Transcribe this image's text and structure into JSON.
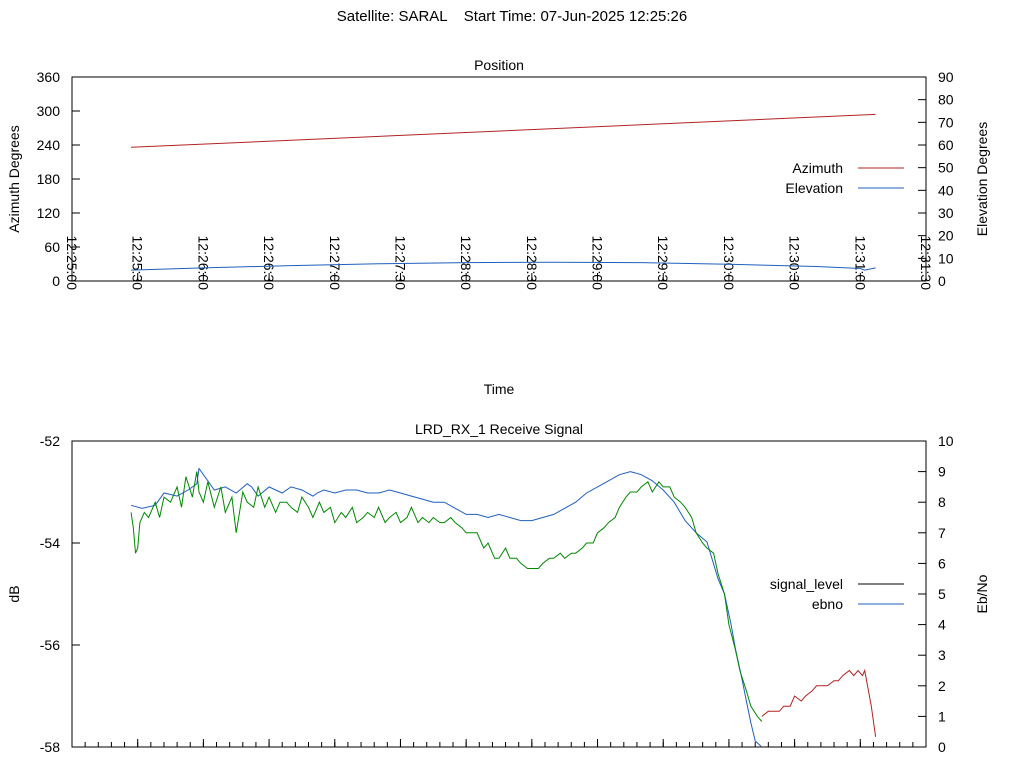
{
  "header": {
    "satellite": "Satellite: SARAL",
    "start_time": "Start Time: 07-Jun-2025 12:25:26"
  },
  "chart_data": [
    {
      "type": "line",
      "title": "Position",
      "xlabel": "Time",
      "ylabel": "Azimuth Degrees",
      "y2label": "Elevation Degrees",
      "x_ticks": [
        "12:25:00",
        "12:25:30",
        "12:26:00",
        "12:26:30",
        "12:27:00",
        "12:27:30",
        "12:28:00",
        "12:28:30",
        "12:29:00",
        "12:29:30",
        "12:30:00",
        "12:30:30",
        "12:31:00",
        "12:31:30"
      ],
      "x_range_seconds": [
        0,
        390
      ],
      "ylim": [
        0,
        360
      ],
      "y_ticks": [
        "0",
        "60",
        "120",
        "180",
        "240",
        "300",
        "360"
      ],
      "y2lim": [
        0,
        90
      ],
      "y2_ticks": [
        "0",
        "10",
        "20",
        "30",
        "40",
        "50",
        "60",
        "70",
        "80",
        "90"
      ],
      "legend_position": "right",
      "series": [
        {
          "name": "Azimuth",
          "axis": "y1",
          "color": "#b22222",
          "x": [
            27,
            367
          ],
          "values": [
            236,
            294
          ]
        },
        {
          "name": "Elevation",
          "axis": "y2",
          "color": "#1f5fbf",
          "x": [
            27,
            60,
            100,
            140,
            180,
            220,
            260,
            300,
            340,
            360,
            362,
            367
          ],
          "values": [
            4.8,
            5.8,
            6.8,
            7.6,
            8.1,
            8.3,
            8.1,
            7.4,
            6.4,
            5.5,
            4.8,
            5.8
          ]
        }
      ]
    },
    {
      "type": "line",
      "title": "LRD_RX_1 Receive Signal",
      "ylabel": "dB",
      "y2label": "Eb/No",
      "x_range_seconds": [
        0,
        390
      ],
      "x_minor_tick_step_seconds": 6,
      "ylim": [
        -58,
        -52
      ],
      "y_ticks": [
        "-58",
        "-56",
        "-54",
        "-52"
      ],
      "y2lim": [
        0,
        10
      ],
      "y2_ticks": [
        "0",
        "1",
        "2",
        "3",
        "4",
        "5",
        "6",
        "7",
        "8",
        "9",
        "10"
      ],
      "legend_position": "right",
      "series": [
        {
          "name": "signal_level",
          "axis": "y1",
          "color": "#000000",
          "legend_only": true
        },
        {
          "name": "ebno",
          "axis": "y2",
          "color": "#1f5fbf",
          "x": [
            27,
            32,
            38,
            42,
            48,
            53,
            57,
            58,
            62,
            65,
            70,
            75,
            80,
            82,
            85,
            90,
            93,
            96,
            100,
            105,
            110,
            112,
            115,
            120,
            125,
            130,
            135,
            140,
            145,
            150,
            155,
            160,
            165,
            170,
            175,
            180,
            185,
            190,
            195,
            200,
            205,
            210,
            215,
            220,
            225,
            230,
            235,
            240,
            245,
            250,
            255,
            260,
            265,
            270,
            275,
            280,
            285,
            290,
            295,
            298,
            301,
            303,
            306,
            308,
            310,
            312,
            315
          ],
          "values": [
            7.9,
            7.8,
            7.9,
            8.3,
            8.2,
            8.4,
            8.6,
            9.1,
            8.7,
            8.4,
            8.5,
            8.3,
            8.6,
            8.5,
            8.2,
            8.5,
            8.4,
            8.3,
            8.5,
            8.4,
            8.2,
            8.3,
            8.4,
            8.3,
            8.4,
            8.4,
            8.3,
            8.3,
            8.4,
            8.3,
            8.2,
            8.1,
            8.0,
            8.0,
            7.8,
            7.6,
            7.6,
            7.5,
            7.6,
            7.5,
            7.4,
            7.4,
            7.5,
            7.6,
            7.8,
            8.0,
            8.3,
            8.5,
            8.7,
            8.9,
            9.0,
            8.9,
            8.7,
            8.4,
            8.0,
            7.4,
            7.0,
            6.7,
            5.5,
            5.0,
            4.0,
            3.2,
            2.2,
            1.5,
            0.8,
            0.2,
            0.0
          ]
        },
        {
          "name": "signal_level_trace",
          "axis": "y1",
          "color": "#008800",
          "x": [
            27,
            28,
            29,
            30,
            31,
            33,
            35,
            38,
            40,
            42,
            45,
            48,
            50,
            52,
            55,
            57,
            58,
            60,
            62,
            65,
            68,
            70,
            73,
            75,
            78,
            80,
            83,
            85,
            88,
            90,
            93,
            95,
            98,
            100,
            103,
            105,
            108,
            110,
            113,
            115,
            118,
            120,
            123,
            125,
            128,
            130,
            133,
            135,
            138,
            140,
            143,
            145,
            148,
            150,
            153,
            155,
            158,
            160,
            163,
            165,
            168,
            170,
            173,
            175,
            178,
            180,
            183,
            185,
            188,
            190,
            193,
            195,
            198,
            200,
            203,
            205,
            208,
            210,
            213,
            215,
            218,
            220,
            223,
            225,
            228,
            230,
            233,
            235,
            238,
            240,
            243,
            245,
            248,
            250,
            253,
            255,
            258,
            260,
            263,
            265,
            268,
            270,
            273,
            275,
            278,
            280,
            283,
            285,
            288,
            290,
            293,
            295,
            298,
            300,
            303,
            305,
            308,
            310,
            313,
            315
          ],
          "values": [
            -53.4,
            -53.7,
            -54.2,
            -54.1,
            -53.6,
            -53.4,
            -53.5,
            -53.2,
            -53.5,
            -53.1,
            -53.2,
            -52.9,
            -53.3,
            -52.7,
            -53.1,
            -52.6,
            -53.0,
            -53.2,
            -52.8,
            -53.3,
            -52.9,
            -53.4,
            -53.1,
            -53.8,
            -53.0,
            -53.2,
            -53.3,
            -52.9,
            -53.3,
            -53.1,
            -53.4,
            -53.2,
            -53.2,
            -53.3,
            -53.4,
            -53.1,
            -53.3,
            -53.5,
            -53.2,
            -53.4,
            -53.3,
            -53.6,
            -53.4,
            -53.5,
            -53.3,
            -53.6,
            -53.5,
            -53.4,
            -53.5,
            -53.3,
            -53.6,
            -53.5,
            -53.4,
            -53.6,
            -53.5,
            -53.3,
            -53.6,
            -53.5,
            -53.6,
            -53.5,
            -53.6,
            -53.6,
            -53.5,
            -53.6,
            -53.7,
            -53.8,
            -53.8,
            -53.8,
            -54.1,
            -54.0,
            -54.3,
            -54.3,
            -54.1,
            -54.3,
            -54.3,
            -54.4,
            -54.5,
            -54.5,
            -54.5,
            -54.4,
            -54.3,
            -54.3,
            -54.2,
            -54.3,
            -54.2,
            -54.2,
            -54.1,
            -54.0,
            -54.0,
            -53.8,
            -53.7,
            -53.6,
            -53.5,
            -53.3,
            -53.1,
            -53.0,
            -53.0,
            -52.9,
            -52.8,
            -53.0,
            -52.8,
            -52.9,
            -52.9,
            -53.1,
            -53.2,
            -53.3,
            -53.5,
            -53.8,
            -54.0,
            -54.1,
            -54.2,
            -54.6,
            -55.0,
            -55.6,
            -56.1,
            -56.5,
            -56.9,
            -57.2,
            -57.4,
            -57.5
          ]
        },
        {
          "name": "signal_level_tail",
          "axis": "y1",
          "color": "#b22222",
          "x": [
            315,
            318,
            320,
            323,
            325,
            328,
            330,
            333,
            335,
            338,
            340,
            343,
            345,
            348,
            350,
            352,
            355,
            357,
            359,
            361,
            362,
            365,
            367
          ],
          "values": [
            -57.4,
            -57.3,
            -57.3,
            -57.3,
            -57.2,
            -57.2,
            -57.0,
            -57.1,
            -57.0,
            -56.9,
            -56.8,
            -56.8,
            -56.8,
            -56.7,
            -56.7,
            -56.6,
            -56.5,
            -56.6,
            -56.5,
            -56.6,
            -56.5,
            -57.2,
            -57.8
          ]
        }
      ]
    }
  ]
}
